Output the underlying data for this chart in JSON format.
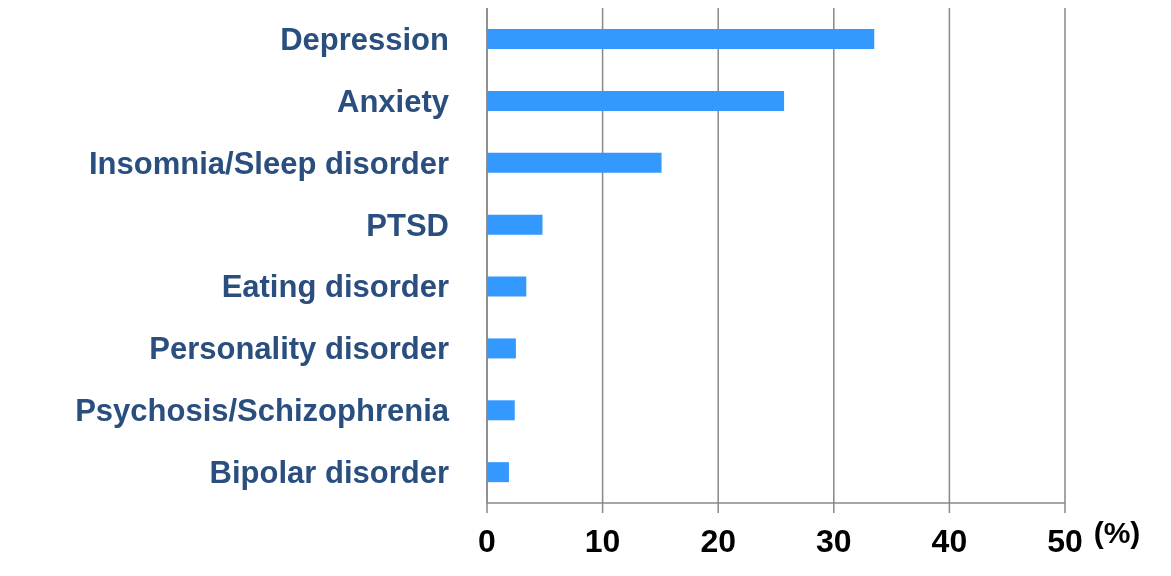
{
  "chart_data": {
    "type": "bar",
    "orientation": "horizontal",
    "xlabel": "(%)",
    "categories": [
      "Depression",
      "Anxiety",
      "Insomnia/Sleep disorder",
      "PTSD",
      "Eating disorder",
      "Personality disorder",
      "Psychosis/Schizophrenia",
      "Bipolar disorder"
    ],
    "values": [
      33.5,
      25.7,
      15.1,
      4.8,
      3.4,
      2.5,
      2.4,
      1.9
    ],
    "color": "#3399ff",
    "xlim": [
      0,
      50
    ],
    "xticks": [
      0,
      10,
      20,
      30,
      40,
      50
    ],
    "grid": "x"
  }
}
